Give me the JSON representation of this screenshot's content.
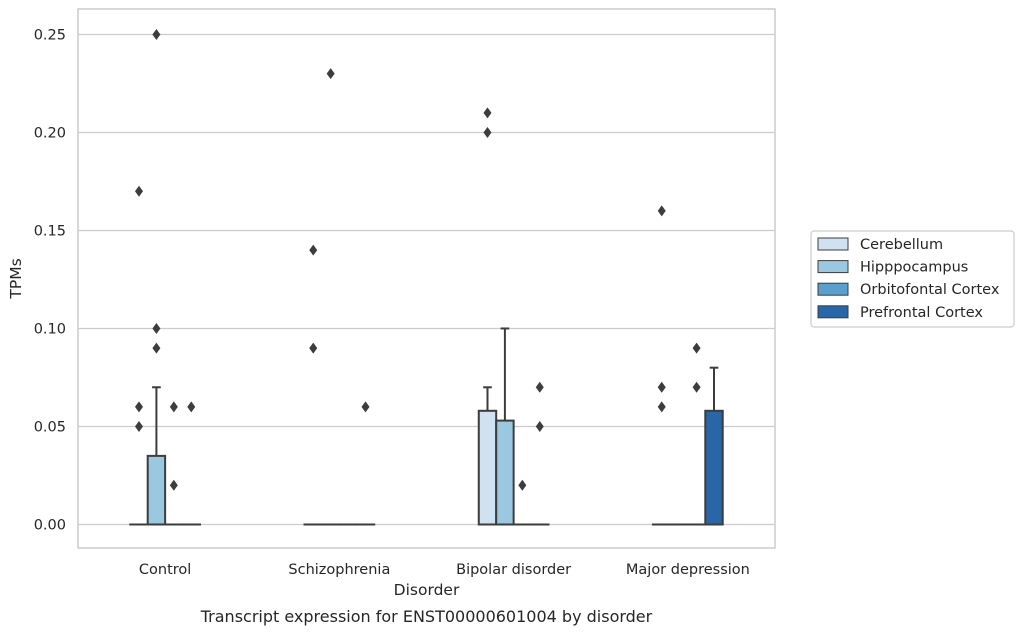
{
  "chart_data": {
    "type": "box",
    "title": "",
    "caption": "Transcript expression for ENST00000601004 by disorder",
    "xlabel": "Disorder",
    "ylabel": "TPMs",
    "ylim": [
      -0.012,
      0.263
    ],
    "yticks": [
      0.0,
      0.05,
      0.1,
      0.15,
      0.2,
      0.25
    ],
    "ytick_labels": [
      "0.00",
      "0.05",
      "0.10",
      "0.15",
      "0.20",
      "0.25"
    ],
    "grid": "horizontal",
    "legend_position": "right",
    "categories": [
      "Control",
      "Schizophrenia",
      "Bipolar disorder",
      "Major depression"
    ],
    "series": [
      {
        "name": "Cerebellum",
        "color": "#d0e1f2",
        "boxes": [
          {
            "q1": 0,
            "median": 0,
            "q3": 0,
            "whisker_low": 0,
            "whisker_high": 0,
            "outliers": [
              0.06,
              0.05,
              0.17
            ]
          },
          {
            "q1": 0,
            "median": 0,
            "q3": 0,
            "whisker_low": 0,
            "whisker_high": 0,
            "outliers": [
              0.09,
              0.14
            ]
          },
          {
            "q1": 0,
            "median": 0,
            "q3": 0.058,
            "whisker_low": 0,
            "whisker_high": 0.07,
            "outliers": [
              0.2,
              0.21
            ]
          },
          {
            "q1": 0,
            "median": 0,
            "q3": 0,
            "whisker_low": 0,
            "whisker_high": 0,
            "outliers": [
              0.06,
              0.07,
              0.16
            ]
          }
        ]
      },
      {
        "name": "Hipppocampus",
        "color": "#9ac8e0",
        "boxes": [
          {
            "q1": 0,
            "median": 0,
            "q3": 0.035,
            "whisker_low": 0,
            "whisker_high": 0.07,
            "outliers": [
              0.09,
              0.1,
              0.25
            ]
          },
          {
            "q1": 0,
            "median": 0,
            "q3": 0,
            "whisker_low": 0,
            "whisker_high": 0,
            "outliers": [
              0.23
            ]
          },
          {
            "q1": 0,
            "median": 0,
            "q3": 0.053,
            "whisker_low": 0,
            "whisker_high": 0.1,
            "outliers": []
          },
          {
            "q1": 0,
            "median": 0,
            "q3": 0,
            "whisker_low": 0,
            "whisker_high": 0,
            "outliers": []
          }
        ]
      },
      {
        "name": "Orbitofontal Cortex",
        "color": "#5a9fcd",
        "boxes": [
          {
            "q1": 0,
            "median": 0,
            "q3": 0,
            "whisker_low": 0,
            "whisker_high": 0,
            "outliers": [
              0.02,
              0.06
            ]
          },
          {
            "q1": 0,
            "median": 0,
            "q3": 0,
            "whisker_low": 0,
            "whisker_high": 0,
            "outliers": []
          },
          {
            "q1": 0,
            "median": 0,
            "q3": 0,
            "whisker_low": 0,
            "whisker_high": 0,
            "outliers": [
              0.02
            ]
          },
          {
            "q1": 0,
            "median": 0,
            "q3": 0,
            "whisker_low": 0,
            "whisker_high": 0,
            "outliers": [
              0.07,
              0.09
            ]
          }
        ]
      },
      {
        "name": "Prefrontal Cortex",
        "color": "#2866a8",
        "boxes": [
          {
            "q1": 0,
            "median": 0,
            "q3": 0,
            "whisker_low": 0,
            "whisker_high": 0,
            "outliers": [
              0.06
            ]
          },
          {
            "q1": 0,
            "median": 0,
            "q3": 0,
            "whisker_low": 0,
            "whisker_high": 0,
            "outliers": [
              0.06
            ]
          },
          {
            "q1": 0,
            "median": 0,
            "q3": 0,
            "whisker_low": 0,
            "whisker_high": 0,
            "outliers": [
              0.05,
              0.07
            ]
          },
          {
            "q1": 0,
            "median": 0,
            "q3": 0.058,
            "whisker_low": 0,
            "whisker_high": 0.08,
            "outliers": []
          }
        ]
      }
    ]
  }
}
